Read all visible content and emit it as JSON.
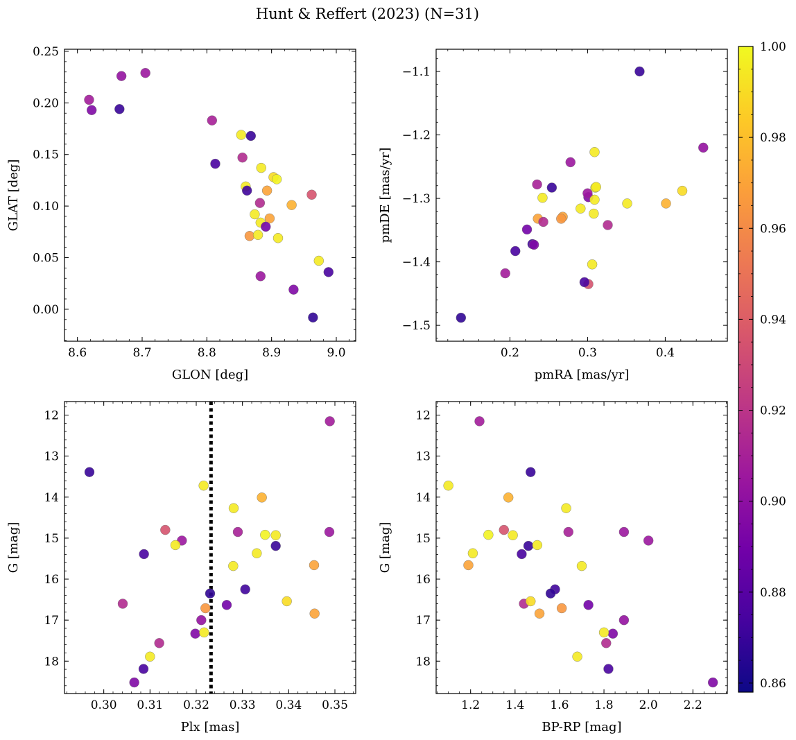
{
  "figure": {
    "title": "Hunt & Reffert (2023) (N=31)"
  },
  "colormap": {
    "name": "plasma",
    "range": [
      0.858,
      1.0
    ],
    "ticks": [
      0.86,
      0.88,
      0.9,
      0.92,
      0.94,
      0.96,
      0.98,
      1.0
    ],
    "tick_labels": [
      "0.86",
      "0.88",
      "0.90",
      "0.92",
      "0.94",
      "0.96",
      "0.98",
      "1.00"
    ],
    "stops": [
      "#0d0887",
      "#46039f",
      "#7201a8",
      "#9c179e",
      "#bd3786",
      "#d8576b",
      "#ed7953",
      "#fb9f3a",
      "#fdca26",
      "#f0f921"
    ]
  },
  "reference_line": {
    "panel": 2,
    "x": 0.3232,
    "style": "dotted",
    "color": "#000000"
  },
  "stars": [
    {
      "glon": 8.705,
      "glat": 0.229,
      "pmra": 0.278,
      "pmde": -1.243,
      "plx": 0.3169,
      "g": 15.06,
      "bprp": 2.0,
      "p": 0.905
    },
    {
      "glon": 8.668,
      "glat": 0.226,
      "pmra": 0.449,
      "pmde": -1.22,
      "plx": 0.3211,
      "g": 17.0,
      "bprp": 1.89,
      "p": 0.902
    },
    {
      "glon": 8.618,
      "glat": 0.203,
      "pmra": 0.194,
      "pmde": -1.418,
      "plx": 0.3489,
      "g": 12.15,
      "bprp": 1.24,
      "p": 0.908
    },
    {
      "glon": 8.622,
      "glat": 0.193,
      "pmra": 0.301,
      "pmde": -1.298,
      "plx": 0.3198,
      "g": 17.33,
      "bprp": 1.84,
      "p": 0.895
    },
    {
      "glon": 8.665,
      "glat": 0.194,
      "pmra": 0.367,
      "pmde": -1.1,
      "plx": 0.2969,
      "g": 13.39,
      "bprp": 1.47,
      "p": 0.87
    },
    {
      "glon": 8.808,
      "glat": 0.183,
      "pmra": 0.235,
      "pmde": -1.278,
      "plx": 0.329,
      "g": 14.85,
      "bprp": 1.64,
      "p": 0.91
    },
    {
      "glon": 8.853,
      "glat": 0.169,
      "pmra": 0.309,
      "pmde": -1.227,
      "plx": 0.3281,
      "g": 14.27,
      "bprp": 1.63,
      "p": 0.995
    },
    {
      "glon": 8.868,
      "glat": 0.168,
      "pmra": 0.254,
      "pmde": -1.283,
      "plx": 0.3372,
      "g": 15.19,
      "bprp": 1.46,
      "p": 0.87
    },
    {
      "glon": 8.855,
      "glat": 0.147,
      "pmra": 0.326,
      "pmde": -1.342,
      "plx": 0.3041,
      "g": 16.6,
      "bprp": 1.44,
      "p": 0.915
    },
    {
      "glon": 8.813,
      "glat": 0.141,
      "pmra": 0.207,
      "pmde": -1.383,
      "plx": 0.3087,
      "g": 15.39,
      "bprp": 1.43,
      "p": 0.875
    },
    {
      "glon": 8.884,
      "glat": 0.137,
      "pmra": 0.351,
      "pmde": -1.308,
      "plx": 0.3372,
      "g": 14.93,
      "bprp": 1.39,
      "p": 0.995
    },
    {
      "glon": 8.903,
      "glat": 0.128,
      "pmra": 0.422,
      "pmde": -1.288,
      "plx": 0.3396,
      "g": 16.54,
      "bprp": 1.47,
      "p": 0.99
    },
    {
      "glon": 8.908,
      "glat": 0.126,
      "pmra": 0.31,
      "pmde": -1.283,
      "plx": 0.3349,
      "g": 14.92,
      "bprp": 1.28,
      "p": 0.998
    },
    {
      "glon": 8.86,
      "glat": 0.119,
      "pmra": 0.242,
      "pmde": -1.299,
      "plx": 0.328,
      "g": 15.68,
      "bprp": 1.7,
      "p": 0.995
    },
    {
      "glon": 8.862,
      "glat": 0.115,
      "pmra": 0.229,
      "pmde": -1.372,
      "plx": 0.3306,
      "g": 16.25,
      "bprp": 1.58,
      "p": 0.872
    },
    {
      "glon": 8.893,
      "glat": 0.115,
      "pmra": 0.236,
      "pmde": -1.332,
      "plx": 0.3456,
      "g": 16.84,
      "bprp": 1.51,
      "p": 0.97
    },
    {
      "glon": 8.962,
      "glat": 0.111,
      "pmra": 0.301,
      "pmde": -1.435,
      "plx": 0.3133,
      "g": 14.8,
      "bprp": 1.35,
      "p": 0.935
    },
    {
      "glon": 8.882,
      "glat": 0.103,
      "pmra": 0.243,
      "pmde": -1.337,
      "plx": 0.312,
      "g": 17.56,
      "bprp": 1.81,
      "p": 0.915
    },
    {
      "glon": 8.931,
      "glat": 0.101,
      "pmra": 0.401,
      "pmde": -1.308,
      "plx": 0.3342,
      "g": 14.01,
      "bprp": 1.37,
      "p": 0.975
    },
    {
      "glon": 8.874,
      "glat": 0.092,
      "pmra": 0.308,
      "pmde": -1.324,
      "plx": 0.3331,
      "g": 15.37,
      "bprp": 1.21,
      "p": 0.995
    },
    {
      "glon": 8.897,
      "glat": 0.088,
      "pmra": 0.268,
      "pmde": -1.329,
      "plx": 0.3455,
      "g": 15.66,
      "bprp": 1.19,
      "p": 0.97
    },
    {
      "glon": 8.883,
      "glat": 0.084,
      "pmra": 0.291,
      "pmde": -1.316,
      "plx": 0.3155,
      "g": 15.17,
      "bprp": 1.5,
      "p": 0.995
    },
    {
      "glon": 8.891,
      "glat": 0.08,
      "pmra": 0.222,
      "pmde": -1.349,
      "plx": 0.3266,
      "g": 16.63,
      "bprp": 1.73,
      "p": 0.89
    },
    {
      "glon": 8.866,
      "glat": 0.071,
      "pmra": 0.266,
      "pmde": -1.332,
      "plx": 0.322,
      "g": 16.71,
      "bprp": 1.61,
      "p": 0.965
    },
    {
      "glon": 8.879,
      "glat": 0.072,
      "pmra": 0.309,
      "pmde": -1.302,
      "plx": 0.3216,
      "g": 13.72,
      "bprp": 1.1,
      "p": 0.995
    },
    {
      "glon": 8.91,
      "glat": 0.069,
      "pmra": 0.306,
      "pmde": -1.404,
      "plx": 0.31,
      "g": 17.89,
      "bprp": 1.68,
      "p": 0.995
    },
    {
      "glon": 8.973,
      "glat": 0.047,
      "pmra": 0.311,
      "pmde": -1.282,
      "plx": 0.3217,
      "g": 17.3,
      "bprp": 1.8,
      "p": 0.995
    },
    {
      "glon": 8.883,
      "glat": 0.032,
      "pmra": 0.3,
      "pmde": -1.292,
      "plx": 0.3488,
      "g": 14.85,
      "bprp": 1.89,
      "p": 0.905
    },
    {
      "glon": 8.934,
      "glat": 0.019,
      "pmra": 0.231,
      "pmde": -1.373,
      "plx": 0.3066,
      "g": 18.52,
      "bprp": 2.29,
      "p": 0.895
    },
    {
      "glon": 8.988,
      "glat": 0.036,
      "pmra": 0.296,
      "pmde": -1.432,
      "plx": 0.3086,
      "g": 18.19,
      "bprp": 1.82,
      "p": 0.875
    },
    {
      "glon": 8.964,
      "glat": -0.008,
      "pmra": 0.137,
      "pmde": -1.488,
      "plx": 0.323,
      "g": 16.35,
      "bprp": 1.56,
      "p": 0.868
    }
  ],
  "chart_data": [
    {
      "type": "scatter",
      "xlabel": "GLON [deg]",
      "ylabel": "GLAT [deg]",
      "x_field": "glon",
      "y_field": "glat",
      "xlim": [
        8.58,
        9.03
      ],
      "ylim": [
        -0.031,
        0.252
      ],
      "y_inverted": false,
      "xticks": [
        8.6,
        8.7,
        8.8,
        8.9,
        9.0
      ],
      "xtick_labels": [
        "8.6",
        "8.7",
        "8.8",
        "8.9",
        "9.0"
      ],
      "yticks": [
        0.0,
        0.05,
        0.1,
        0.15,
        0.2,
        0.25
      ],
      "ytick_labels": [
        "0.00",
        "0.05",
        "0.10",
        "0.15",
        "0.20",
        "0.25"
      ],
      "xminor": 0.02,
      "yminor": 0.01
    },
    {
      "type": "scatter",
      "xlabel": "pmRA [mas/yr]",
      "ylabel": "pmDE [mas/yr]",
      "x_field": "pmra",
      "y_field": "pmde",
      "xlim": [
        0.105,
        0.48
      ],
      "ylim": [
        -1.525,
        -1.065
      ],
      "y_inverted": false,
      "xticks": [
        0.2,
        0.3,
        0.4
      ],
      "xtick_labels": [
        "0.2",
        "0.3",
        "0.4"
      ],
      "yticks": [
        -1.5,
        -1.4,
        -1.3,
        -1.2,
        -1.1
      ],
      "ytick_labels": [
        "−1.5",
        "−1.4",
        "−1.3",
        "−1.2",
        "−1.1"
      ],
      "xminor": 0.02,
      "yminor": 0.02
    },
    {
      "type": "scatter",
      "xlabel": "Plx [mas]",
      "ylabel": "G [mag]",
      "x_field": "plx",
      "y_field": "g",
      "xlim": [
        0.2915,
        0.3545
      ],
      "ylim": [
        18.79,
        11.67
      ],
      "y_inverted": true,
      "xticks": [
        0.3,
        0.31,
        0.32,
        0.33,
        0.34,
        0.35
      ],
      "xtick_labels": [
        "0.30",
        "0.31",
        "0.32",
        "0.33",
        "0.34",
        "0.35"
      ],
      "yticks": [
        12,
        13,
        14,
        15,
        16,
        17,
        18
      ],
      "ytick_labels": [
        "12",
        "13",
        "14",
        "15",
        "16",
        "17",
        "18"
      ],
      "xminor": 0.002,
      "yminor": 0.2
    },
    {
      "type": "scatter",
      "xlabel": "BP-RP [mag]",
      "ylabel": "G [mag]",
      "x_field": "bprp",
      "y_field": "g",
      "xlim": [
        1.045,
        2.355
      ],
      "ylim": [
        18.79,
        11.67
      ],
      "y_inverted": true,
      "xticks": [
        1.2,
        1.4,
        1.6,
        1.8,
        2.0,
        2.2
      ],
      "xtick_labels": [
        "1.2",
        "1.4",
        "1.6",
        "1.8",
        "2.0",
        "2.2"
      ],
      "yticks": [
        12,
        13,
        14,
        15,
        16,
        17,
        18
      ],
      "ytick_labels": [
        "12",
        "13",
        "14",
        "15",
        "16",
        "17",
        "18"
      ],
      "xminor": 0.05,
      "yminor": 0.2
    }
  ]
}
